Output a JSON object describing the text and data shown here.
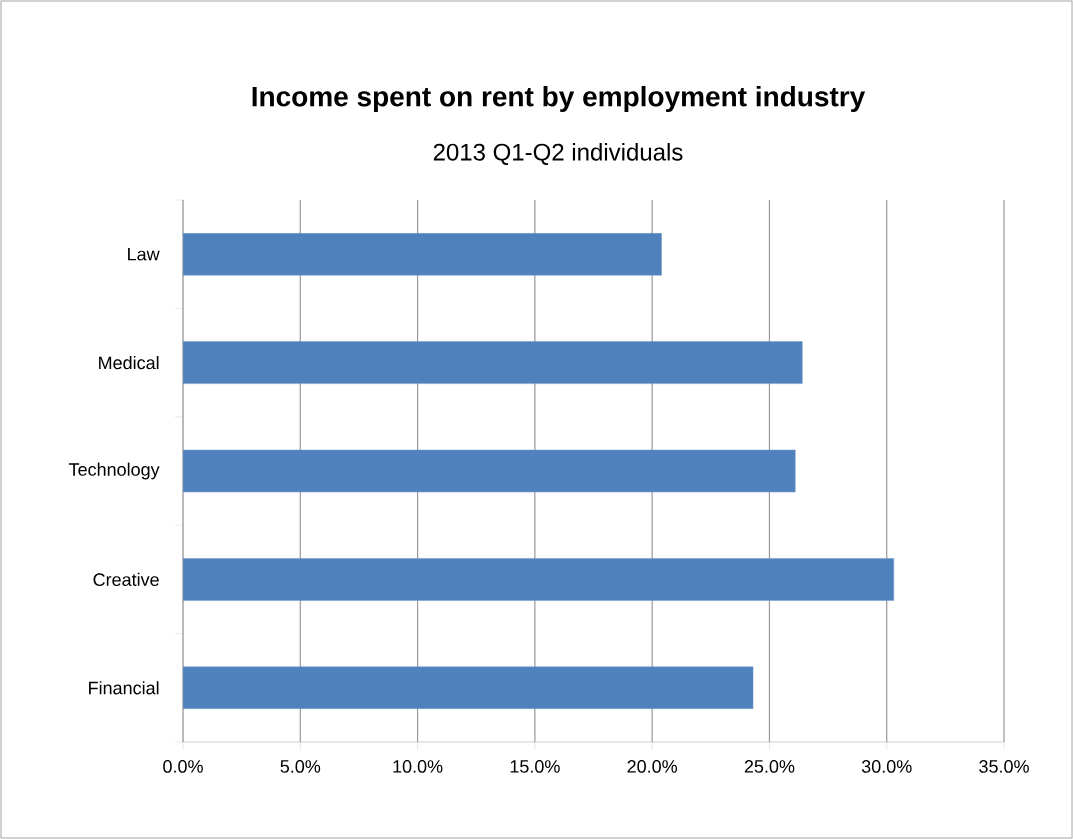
{
  "chart_data": {
    "type": "bar",
    "orientation": "horizontal",
    "title": "Income spent on rent by employment industry",
    "subtitle": "2013 Q1-Q2 individuals",
    "categories": [
      "Law",
      "Medical",
      "Technology",
      "Creative",
      "Financial"
    ],
    "values": [
      20.4,
      26.4,
      26.1,
      30.3,
      24.3
    ],
    "color": "#4f81bd",
    "xlim": [
      0,
      35
    ],
    "xticks": [
      {
        "value": 0,
        "label": "0.0%"
      },
      {
        "value": 5,
        "label": "5.0%"
      },
      {
        "value": 10,
        "label": "10.0%"
      },
      {
        "value": 15,
        "label": "15.0%"
      },
      {
        "value": 20,
        "label": "20.0%"
      },
      {
        "value": 25,
        "label": "25.0%"
      },
      {
        "value": 30,
        "label": "30.0%"
      },
      {
        "value": 35,
        "label": "35.0%"
      }
    ],
    "grid": "x"
  }
}
